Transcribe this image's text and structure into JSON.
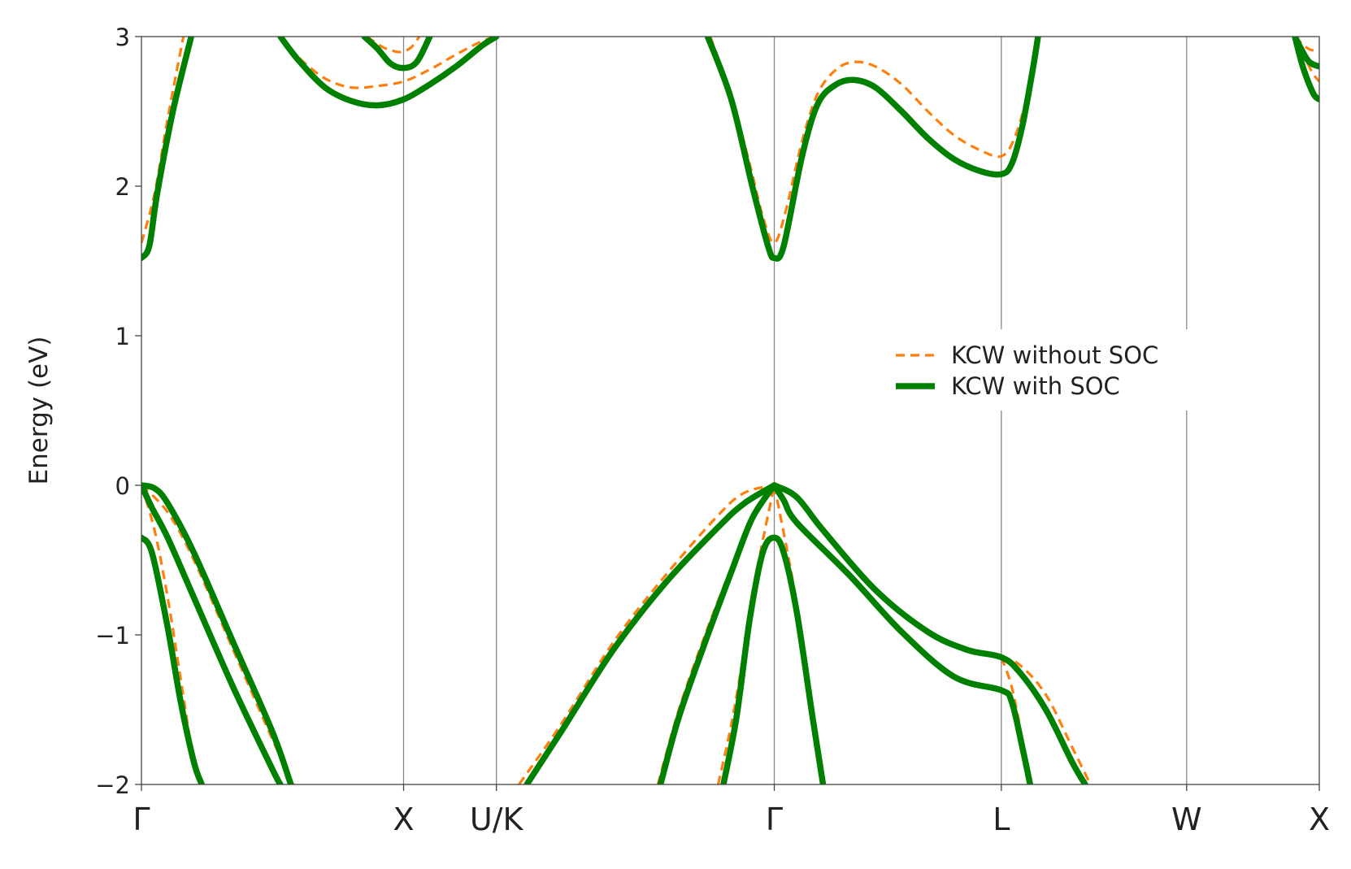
{
  "chart_data": {
    "type": "line",
    "title": "",
    "xlabel": "",
    "ylabel": "Energy (eV)",
    "ylim": [
      -2,
      3
    ],
    "xlim": [
      0,
      4.493
    ],
    "grid": "vertical lines at high-symmetry points",
    "legend_placement": "center-right",
    "y_ticks": [
      {
        "value": 3,
        "label": "3"
      },
      {
        "value": 2,
        "label": "2"
      },
      {
        "value": 1,
        "label": "1"
      },
      {
        "value": 0,
        "label": "0"
      },
      {
        "value": -1,
        "label": "−1"
      },
      {
        "value": -2,
        "label": "−2"
      }
    ],
    "x_ticks": [
      {
        "value": 0.0,
        "label": "Γ"
      },
      {
        "value": 1.0,
        "label": "X"
      },
      {
        "value": 1.354,
        "label": "U/K"
      },
      {
        "value": 2.414,
        "label": "Γ"
      },
      {
        "value": 3.28,
        "label": "L"
      },
      {
        "value": 3.987,
        "label": "W"
      },
      {
        "value": 4.493,
        "label": "X"
      }
    ],
    "colors": {
      "without_soc": "#ff7f0e",
      "with_soc": "#008000",
      "axis": "#444444",
      "gridline": "#888888"
    },
    "legend": [
      {
        "label": "KCW without SOC",
        "style": "dashed",
        "color": "#ff7f0e"
      },
      {
        "label": "KCW with SOC",
        "style": "solid",
        "color": "#008000"
      }
    ],
    "series": [
      {
        "name": "KCW without SOC",
        "style": "dashed",
        "color": "#ff7f0e",
        "segments": [
          [
            [
              0,
              1.62
            ],
            [
              0.05,
              1.95
            ],
            [
              0.1,
              2.45
            ],
            [
              0.16,
              3.0
            ]
          ],
          [
            [
              0.53,
              3.0
            ],
            [
              0.6,
              2.86
            ],
            [
              0.7,
              2.72
            ],
            [
              0.8,
              2.66
            ],
            [
              0.9,
              2.67
            ],
            [
              1.0,
              2.7
            ],
            [
              1.1,
              2.78
            ],
            [
              1.2,
              2.88
            ],
            [
              1.3,
              2.97
            ],
            [
              1.354,
              3.0
            ]
          ],
          [
            [
              0.86,
              3.0
            ],
            [
              0.92,
              2.93
            ],
            [
              0.97,
              2.9
            ],
            [
              1.0,
              2.9
            ],
            [
              1.03,
              2.93
            ],
            [
              1.06,
              3.0
            ]
          ],
          [
            [
              2.17,
              3.0
            ],
            [
              2.25,
              2.6
            ],
            [
              2.32,
              2.15
            ],
            [
              2.37,
              1.8
            ],
            [
              2.414,
              1.62
            ],
            [
              2.46,
              1.85
            ],
            [
              2.52,
              2.3
            ],
            [
              2.58,
              2.62
            ],
            [
              2.65,
              2.78
            ],
            [
              2.72,
              2.83
            ],
            [
              2.8,
              2.8
            ],
            [
              2.9,
              2.68
            ],
            [
              3.0,
              2.5
            ],
            [
              3.1,
              2.34
            ],
            [
              3.2,
              2.24
            ],
            [
              3.28,
              2.2
            ],
            [
              3.33,
              2.32
            ],
            [
              3.38,
              2.62
            ],
            [
              3.42,
              3.0
            ]
          ],
          [
            [
              4.4,
              3.0
            ],
            [
              4.45,
              2.92
            ],
            [
              4.493,
              2.9
            ]
          ],
          [
            [
              4.4,
              3.0
            ],
            [
              4.44,
              2.85
            ],
            [
              4.47,
              2.75
            ],
            [
              4.493,
              2.7
            ]
          ],
          [
            [
              0,
              0
            ],
            [
              0.05,
              -0.3
            ],
            [
              0.1,
              -0.75
            ],
            [
              0.15,
              -1.3
            ],
            [
              0.2,
              -1.85
            ],
            [
              0.23,
              -2.0
            ]
          ],
          [
            [
              0,
              0
            ],
            [
              0.1,
              -0.18
            ],
            [
              0.2,
              -0.5
            ],
            [
              0.35,
              -1.1
            ],
            [
              0.5,
              -1.7
            ],
            [
              0.58,
              -2.0
            ]
          ],
          [
            [
              1.44,
              -2.0
            ],
            [
              1.6,
              -1.6
            ],
            [
              1.8,
              -1.05
            ],
            [
              2.0,
              -0.6
            ],
            [
              2.2,
              -0.2
            ],
            [
              2.3,
              -0.05
            ],
            [
              2.414,
              0
            ]
          ],
          [
            [
              1.97,
              -2.0
            ],
            [
              2.05,
              -1.5
            ],
            [
              2.15,
              -1.0
            ],
            [
              2.25,
              -0.55
            ],
            [
              2.33,
              -0.2
            ],
            [
              2.414,
              0
            ]
          ],
          [
            [
              2.2,
              -2.0
            ],
            [
              2.25,
              -1.6
            ],
            [
              2.3,
              -1.1
            ],
            [
              2.35,
              -0.55
            ],
            [
              2.414,
              0
            ]
          ],
          [
            [
              2.414,
              0
            ],
            [
              2.47,
              -0.5
            ],
            [
              2.52,
              -1.0
            ],
            [
              2.56,
              -1.5
            ],
            [
              2.6,
              -2.0
            ]
          ],
          [
            [
              3.28,
              -1.15
            ],
            [
              3.35,
              -1.2
            ],
            [
              3.45,
              -1.4
            ],
            [
              3.55,
              -1.75
            ],
            [
              3.62,
              -2.0
            ]
          ],
          [
            [
              3.28,
              -1.15
            ],
            [
              3.32,
              -1.35
            ],
            [
              3.36,
              -1.7
            ],
            [
              3.39,
              -2.0
            ]
          ]
        ]
      },
      {
        "name": "KCW with SOC",
        "style": "solid",
        "color": "#008000",
        "segments": [
          [
            [
              0,
              1.52
            ],
            [
              0.03,
              1.6
            ],
            [
              0.06,
              1.95
            ],
            [
              0.12,
              2.5
            ],
            [
              0.19,
              3.0
            ]
          ],
          [
            [
              0.53,
              3.0
            ],
            [
              0.6,
              2.84
            ],
            [
              0.7,
              2.66
            ],
            [
              0.8,
              2.57
            ],
            [
              0.9,
              2.54
            ],
            [
              1.0,
              2.58
            ],
            [
              1.1,
              2.68
            ],
            [
              1.2,
              2.8
            ],
            [
              1.3,
              2.94
            ],
            [
              1.354,
              3.0
            ]
          ],
          [
            [
              0.85,
              3.0
            ],
            [
              0.9,
              2.92
            ],
            [
              0.95,
              2.82
            ],
            [
              1.0,
              2.79
            ],
            [
              1.05,
              2.83
            ],
            [
              1.1,
              3.0
            ]
          ],
          [
            [
              2.16,
              3.0
            ],
            [
              2.25,
              2.58
            ],
            [
              2.33,
              2.0
            ],
            [
              2.39,
              1.6
            ],
            [
              2.414,
              1.52
            ],
            [
              2.45,
              1.6
            ],
            [
              2.52,
              2.2
            ],
            [
              2.58,
              2.55
            ],
            [
              2.65,
              2.68
            ],
            [
              2.72,
              2.71
            ],
            [
              2.8,
              2.66
            ],
            [
              2.9,
              2.5
            ],
            [
              3.0,
              2.32
            ],
            [
              3.1,
              2.18
            ],
            [
              3.2,
              2.1
            ],
            [
              3.28,
              2.08
            ],
            [
              3.32,
              2.15
            ],
            [
              3.36,
              2.4
            ],
            [
              3.4,
              2.78
            ],
            [
              3.42,
              3.0
            ]
          ],
          [
            [
              4.4,
              3.0
            ],
            [
              4.45,
              2.84
            ],
            [
              4.493,
              2.8
            ]
          ],
          [
            [
              4.4,
              3.0
            ],
            [
              4.43,
              2.8
            ],
            [
              4.47,
              2.62
            ],
            [
              4.493,
              2.58
            ]
          ],
          [
            [
              0,
              0
            ],
            [
              0.05,
              -0.02
            ],
            [
              0.1,
              -0.12
            ],
            [
              0.2,
              -0.45
            ],
            [
              0.35,
              -1.05
            ],
            [
              0.5,
              -1.65
            ],
            [
              0.57,
              -2.0
            ]
          ],
          [
            [
              0,
              0
            ],
            [
              0.04,
              -0.15
            ],
            [
              0.1,
              -0.35
            ],
            [
              0.2,
              -0.75
            ],
            [
              0.35,
              -1.35
            ],
            [
              0.5,
              -1.9
            ],
            [
              0.53,
              -2.0
            ]
          ],
          [
            [
              0,
              -0.35
            ],
            [
              0.04,
              -0.45
            ],
            [
              0.1,
              -0.95
            ],
            [
              0.15,
              -1.45
            ],
            [
              0.2,
              -1.85
            ],
            [
              0.23,
              -2.0
            ]
          ],
          [
            [
              1.47,
              -2.0
            ],
            [
              1.6,
              -1.65
            ],
            [
              1.8,
              -1.1
            ],
            [
              2.0,
              -0.65
            ],
            [
              2.2,
              -0.28
            ],
            [
              2.3,
              -0.12
            ],
            [
              2.414,
              0
            ]
          ],
          [
            [
              1.98,
              -2.0
            ],
            [
              2.05,
              -1.55
            ],
            [
              2.15,
              -1.05
            ],
            [
              2.25,
              -0.58
            ],
            [
              2.33,
              -0.22
            ],
            [
              2.414,
              0
            ]
          ],
          [
            [
              2.414,
              0
            ],
            [
              2.5,
              -0.08
            ],
            [
              2.6,
              -0.3
            ],
            [
              2.8,
              -0.7
            ],
            [
              3.0,
              -0.98
            ],
            [
              3.15,
              -1.1
            ],
            [
              3.28,
              -1.15
            ],
            [
              3.35,
              -1.25
            ],
            [
              3.45,
              -1.5
            ],
            [
              3.55,
              -1.85
            ],
            [
              3.6,
              -2.0
            ]
          ],
          [
            [
              2.414,
              0
            ],
            [
              2.45,
              -0.1
            ],
            [
              2.5,
              -0.25
            ],
            [
              2.7,
              -0.6
            ],
            [
              2.9,
              -0.98
            ],
            [
              3.1,
              -1.28
            ],
            [
              3.28,
              -1.37
            ],
            [
              3.32,
              -1.45
            ],
            [
              3.36,
              -1.75
            ],
            [
              3.39,
              -2.0
            ]
          ],
          [
            [
              2.22,
              -2.0
            ],
            [
              2.27,
              -1.55
            ],
            [
              2.32,
              -0.9
            ],
            [
              2.37,
              -0.45
            ],
            [
              2.414,
              -0.35
            ],
            [
              2.45,
              -0.45
            ],
            [
              2.5,
              -0.85
            ],
            [
              2.56,
              -1.55
            ],
            [
              2.6,
              -2.0
            ]
          ]
        ]
      }
    ]
  }
}
